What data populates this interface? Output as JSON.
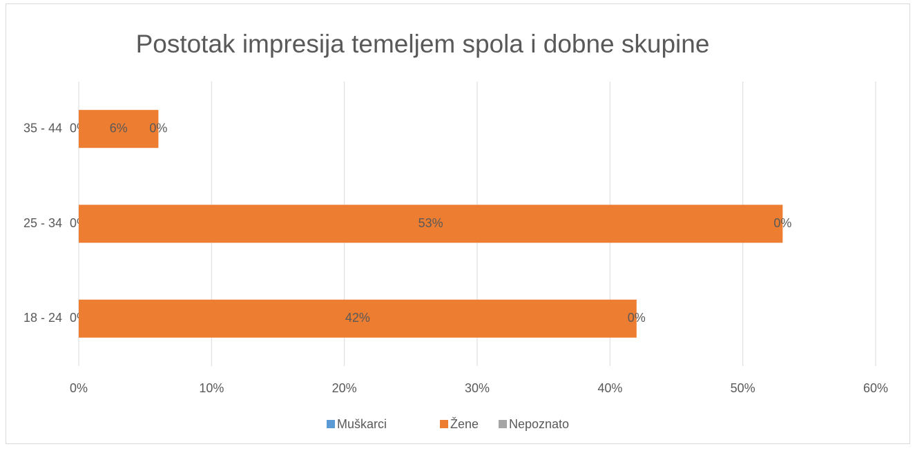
{
  "chart_data": {
    "type": "stacked-barh",
    "title": "Postotak impresija temeljem spola i dobne skupine",
    "categories": [
      "18 - 24",
      "25 - 34",
      "35 - 44"
    ],
    "series": [
      {
        "name": "Muškarci",
        "color": "#5b9bd5",
        "values": [
          0,
          0,
          0
        ],
        "value_labels": [
          "0%",
          "0%",
          "0%"
        ]
      },
      {
        "name": "Žene",
        "color": "#ed7d31",
        "values": [
          42,
          53,
          6
        ],
        "value_labels": [
          "42%",
          "53%",
          "6%"
        ]
      },
      {
        "name": "Nepoznato",
        "color": "#a5a5a5",
        "values": [
          0,
          0,
          0
        ],
        "value_labels": [
          "0%",
          "0%",
          "0%"
        ]
      }
    ],
    "xlim": [
      0,
      60
    ],
    "xticks": [
      {
        "value": 0,
        "label": "0%"
      },
      {
        "value": 10,
        "label": "10%"
      },
      {
        "value": 20,
        "label": "20%"
      },
      {
        "value": 30,
        "label": "30%"
      },
      {
        "value": 40,
        "label": "40%"
      },
      {
        "value": 50,
        "label": "50%"
      },
      {
        "value": 60,
        "label": "60%"
      }
    ],
    "grid": true,
    "legend": "bottom"
  }
}
